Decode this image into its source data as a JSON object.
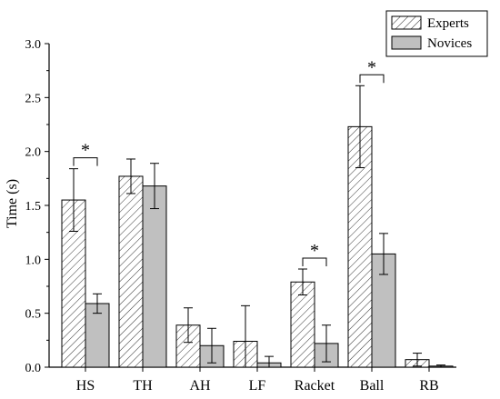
{
  "chart_data": {
    "type": "bar",
    "ylabel": "Time (s)",
    "ylim": [
      0,
      3.0
    ],
    "yticks": [
      "0.0",
      "0.5",
      "1.0",
      "1.5",
      "2.0",
      "2.5",
      "3.0"
    ],
    "categories": [
      "HS",
      "TH",
      "AH",
      "LF",
      "Racket",
      "Ball",
      "RB"
    ],
    "series": [
      {
        "name": "Experts",
        "pattern": "hatched",
        "values": [
          1.55,
          1.77,
          0.39,
          0.24,
          0.79,
          2.23,
          0.07
        ],
        "errors": [
          0.29,
          0.16,
          0.16,
          0.33,
          0.12,
          0.38,
          0.06
        ]
      },
      {
        "name": "Novices",
        "pattern": "solid-gray",
        "values": [
          0.59,
          1.68,
          0.2,
          0.04,
          0.22,
          1.05,
          0.01
        ],
        "errors": [
          0.09,
          0.21,
          0.16,
          0.06,
          0.17,
          0.19,
          0.01
        ]
      }
    ],
    "significance": [
      {
        "category": "HS",
        "label": "*"
      },
      {
        "category": "Racket",
        "label": "*"
      },
      {
        "category": "Ball",
        "label": "*"
      }
    ],
    "legend_position": "top-right",
    "grid": false,
    "colors": {
      "experts_fill": "#ffffff",
      "novices_fill": "#c0c0c0",
      "stroke": "#000000"
    }
  }
}
